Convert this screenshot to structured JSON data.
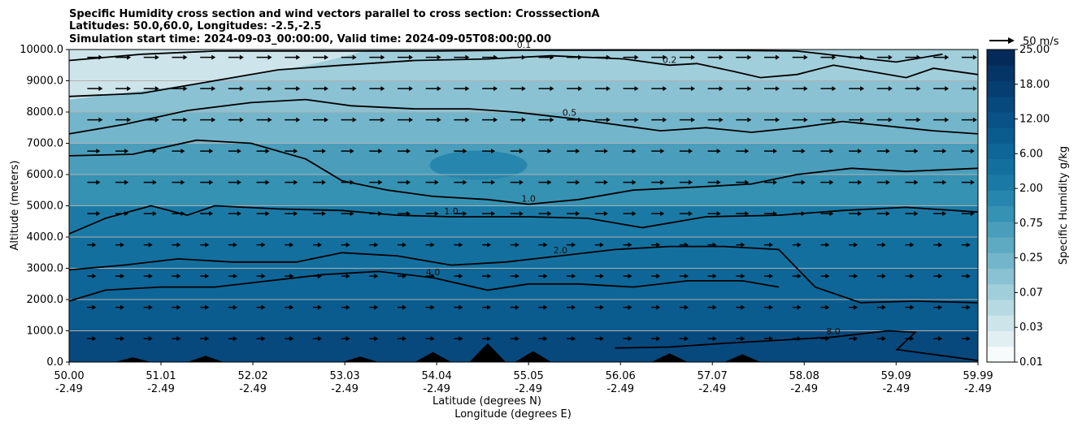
{
  "chart_data": {
    "type": "heatmap",
    "title_lines": [
      "Specific Humidity cross section and wind vectors parallel to cross section: CrosssectionA",
      "Latitudes: 50.0,60.0, Longitudes: -2.5,-2.5",
      "Simulation start time: 2024-09-03_00:00:00, Valid time: 2024-09-05T08:00:00.00"
    ],
    "xlabel_lines": [
      "Latitude (degrees N)",
      "Longitude (degrees E)"
    ],
    "ylabel": "Altitude (meters)",
    "colorbar_label": "Specific Humidity g/kg",
    "x_ticks": [
      {
        "lat": "50.00",
        "lon": "-2.49"
      },
      {
        "lat": "51.01",
        "lon": "-2.49"
      },
      {
        "lat": "52.02",
        "lon": "-2.49"
      },
      {
        "lat": "53.03",
        "lon": "-2.49"
      },
      {
        "lat": "54.04",
        "lon": "-2.49"
      },
      {
        "lat": "55.05",
        "lon": "-2.49"
      },
      {
        "lat": "56.06",
        "lon": "-2.49"
      },
      {
        "lat": "57.07",
        "lon": "-2.49"
      },
      {
        "lat": "58.08",
        "lon": "-2.49"
      },
      {
        "lat": "59.09",
        "lon": "-2.49"
      },
      {
        "lat": "59.99",
        "lon": "-2.49"
      }
    ],
    "xlim": [
      50.0,
      59.99
    ],
    "y_ticks": [
      "0.0",
      "1000.0",
      "2000.0",
      "3000.0",
      "4000.0",
      "5000.0",
      "6000.0",
      "7000.0",
      "8000.0",
      "9000.0",
      "10000.0"
    ],
    "ylim": [
      0,
      10000
    ],
    "colorbar_ticks": [
      "0.01",
      "0.03",
      "0.07",
      "0.25",
      "0.75",
      "2.00",
      "6.00",
      "12.00",
      "18.00",
      "25.00"
    ],
    "colorbar_levels": 20,
    "quiver_key": {
      "label": "50 m/s",
      "speed": 50
    },
    "contour_labels": [
      "0.1",
      "0.2",
      "0.5",
      "1.0",
      "2.0",
      "4.0",
      "8.0"
    ],
    "contours": [
      {
        "level": "0.1",
        "points": [
          [
            50.0,
            9650
          ],
          [
            50.8,
            9850
          ],
          [
            51.6,
            9950
          ],
          [
            52.4,
            9950
          ],
          [
            53.2,
            9950
          ],
          [
            54.0,
            9950
          ],
          [
            55.0,
            9980
          ],
          [
            56.0,
            9980
          ],
          [
            57.0,
            9980
          ],
          [
            58.0,
            9950
          ],
          [
            59.09,
            9600
          ],
          [
            59.6,
            9850
          ]
        ]
      },
      {
        "level": "0.2",
        "points": [
          [
            50.0,
            8500
          ],
          [
            50.8,
            8600
          ],
          [
            51.5,
            8950
          ],
          [
            52.3,
            9350
          ],
          [
            53.0,
            9500
          ],
          [
            53.8,
            9650
          ],
          [
            54.6,
            9700
          ],
          [
            55.3,
            9800
          ],
          [
            56.1,
            9700
          ],
          [
            56.6,
            9500
          ],
          [
            56.9,
            9550
          ],
          [
            57.3,
            9300
          ],
          [
            57.6,
            9100
          ],
          [
            58.0,
            9200
          ],
          [
            58.4,
            9500
          ],
          [
            58.8,
            9300
          ],
          [
            59.2,
            9100
          ],
          [
            59.5,
            9400
          ],
          [
            59.99,
            9200
          ]
        ]
      },
      {
        "level": "0.5",
        "points": [
          [
            50.0,
            7300
          ],
          [
            50.6,
            7600
          ],
          [
            51.3,
            8050
          ],
          [
            52.0,
            8300
          ],
          [
            52.6,
            8400
          ],
          [
            53.1,
            8200
          ],
          [
            53.8,
            8100
          ],
          [
            54.4,
            8100
          ],
          [
            54.9,
            8000
          ],
          [
            55.5,
            7800
          ],
          [
            56.0,
            7600
          ],
          [
            56.5,
            7400
          ],
          [
            57.0,
            7500
          ],
          [
            57.5,
            7350
          ],
          [
            58.0,
            7500
          ],
          [
            58.5,
            7700
          ],
          [
            59.0,
            7550
          ],
          [
            59.5,
            7400
          ],
          [
            59.99,
            7300
          ]
        ]
      },
      {
        "level": "1.0",
        "points": [
          [
            50.0,
            6600
          ],
          [
            50.7,
            6650
          ],
          [
            51.4,
            7100
          ],
          [
            52.0,
            7000
          ],
          [
            52.6,
            6500
          ],
          [
            53.0,
            5800
          ],
          [
            53.5,
            5500
          ],
          [
            54.0,
            5300
          ],
          [
            54.6,
            5200
          ],
          [
            55.05,
            5050
          ],
          [
            55.6,
            5200
          ],
          [
            56.2,
            5500
          ],
          [
            56.9,
            5600
          ],
          [
            57.5,
            5700
          ],
          [
            58.0,
            6000
          ],
          [
            58.6,
            6200
          ],
          [
            59.2,
            6100
          ],
          [
            59.99,
            6200
          ]
        ]
      },
      {
        "level": "1.0",
        "points": [
          [
            50.0,
            4100
          ],
          [
            50.4,
            4600
          ],
          [
            50.9,
            5000
          ],
          [
            51.3,
            4700
          ],
          [
            51.6,
            5000
          ],
          [
            52.3,
            4900
          ],
          [
            53.0,
            4850
          ],
          [
            53.6,
            4700
          ],
          [
            54.2,
            4650
          ],
          [
            55.05,
            4650
          ],
          [
            55.7,
            4600
          ],
          [
            56.3,
            4300
          ],
          [
            57.0,
            4650
          ],
          [
            57.8,
            4700
          ],
          [
            58.5,
            4850
          ],
          [
            59.2,
            4950
          ],
          [
            59.99,
            4800
          ]
        ]
      },
      {
        "level": "2.0",
        "points": [
          [
            50.0,
            2950
          ],
          [
            50.6,
            3100
          ],
          [
            51.2,
            3300
          ],
          [
            51.8,
            3200
          ],
          [
            52.5,
            3200
          ],
          [
            53.0,
            3500
          ],
          [
            53.6,
            3400
          ],
          [
            54.2,
            3100
          ],
          [
            54.8,
            3200
          ],
          [
            55.4,
            3400
          ],
          [
            56.0,
            3600
          ],
          [
            56.6,
            3700
          ],
          [
            57.2,
            3700
          ],
          [
            57.8,
            3600
          ],
          [
            58.2,
            2400
          ],
          [
            58.7,
            1900
          ],
          [
            59.3,
            1950
          ],
          [
            59.99,
            1900
          ]
        ]
      },
      {
        "level": "4.0",
        "points": [
          [
            50.0,
            1950
          ],
          [
            50.4,
            2300
          ],
          [
            51.0,
            2400
          ],
          [
            51.6,
            2400
          ],
          [
            52.2,
            2600
          ],
          [
            52.8,
            2800
          ],
          [
            53.4,
            2900
          ],
          [
            54.0,
            2700
          ],
          [
            54.6,
            2300
          ],
          [
            55.05,
            2500
          ],
          [
            55.6,
            2500
          ],
          [
            56.2,
            2400
          ],
          [
            56.8,
            2600
          ],
          [
            57.4,
            2600
          ],
          [
            57.8,
            2400
          ]
        ]
      },
      {
        "level": "8.0",
        "points": [
          [
            56.0,
            450
          ],
          [
            56.6,
            480
          ],
          [
            57.2,
            600
          ],
          [
            57.8,
            700
          ],
          [
            58.4,
            800
          ],
          [
            59.0,
            1000
          ],
          [
            59.3,
            950
          ],
          [
            59.1,
            400
          ],
          [
            59.99,
            50
          ]
        ]
      }
    ],
    "terrain_peaks": [
      {
        "lat": 50.7,
        "alt": 150
      },
      {
        "lat": 51.5,
        "alt": 200
      },
      {
        "lat": 53.2,
        "alt": 180
      },
      {
        "lat": 54.0,
        "alt": 320
      },
      {
        "lat": 54.6,
        "alt": 600
      },
      {
        "lat": 55.1,
        "alt": 350
      },
      {
        "lat": 56.6,
        "alt": 280
      },
      {
        "lat": 57.4,
        "alt": 250
      }
    ]
  }
}
